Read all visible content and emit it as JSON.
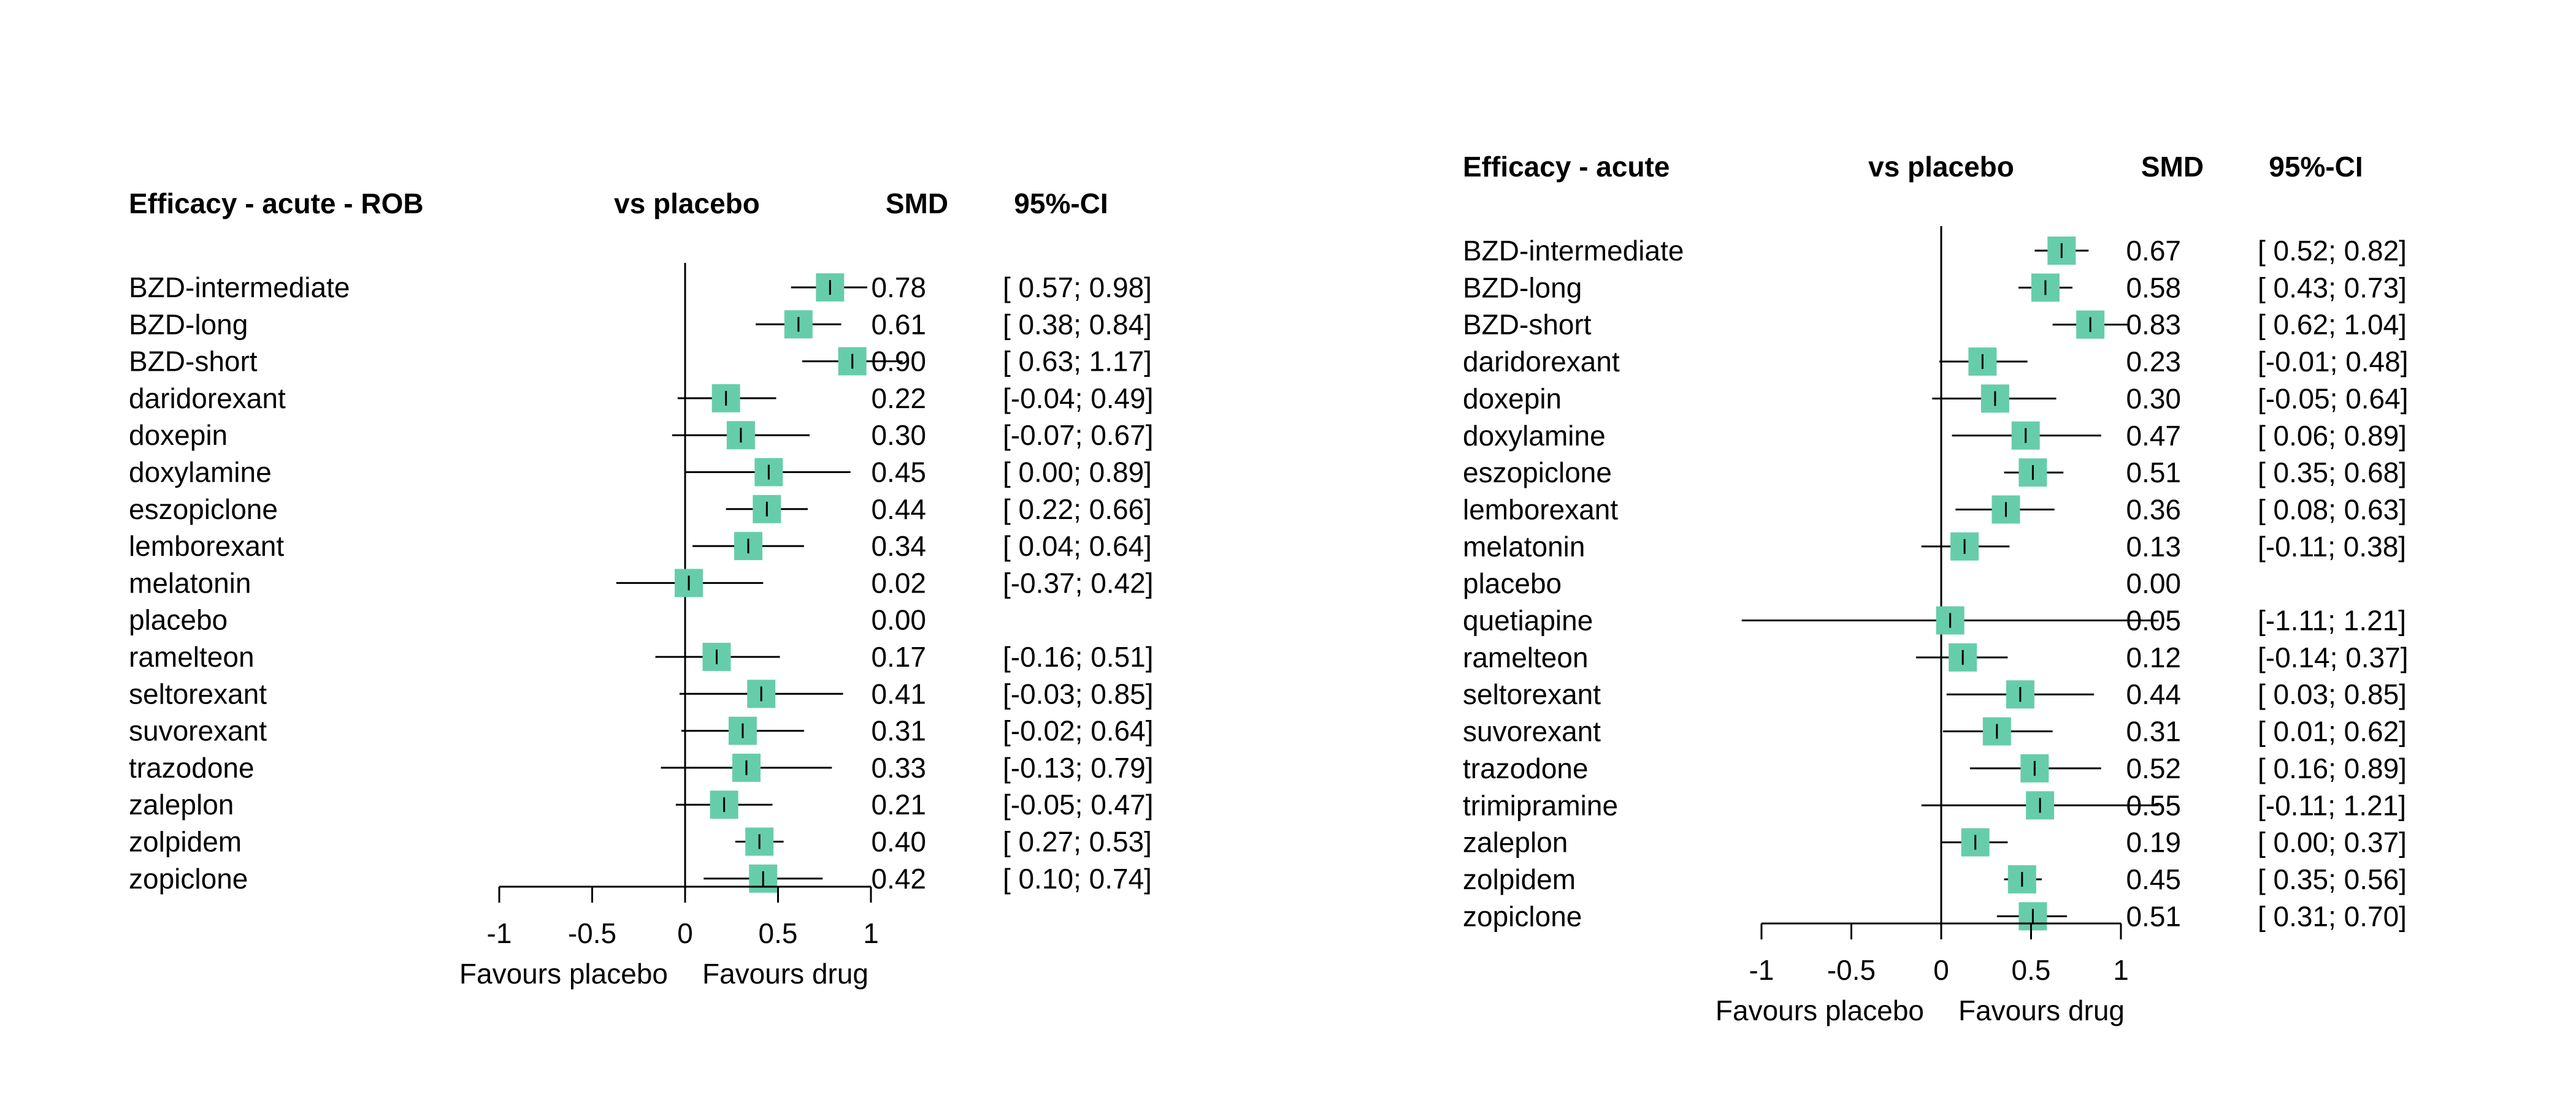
{
  "colors": {
    "box": "#66CDAA",
    "line": "#000000"
  },
  "chart_data": [
    {
      "type": "forest",
      "panel_title": "Efficacy - acute - ROB",
      "comparison_header": "vs placebo",
      "effect_header": "SMD",
      "ci_header": "95%-CI",
      "xlim": [
        -1,
        1
      ],
      "ticks": [
        "-1",
        "-0.5",
        "0",
        "0.5",
        "1"
      ],
      "tick_values": [
        -1,
        -0.5,
        0,
        0.5,
        1
      ],
      "favours_left": "Favours placebo",
      "favours_right": "Favours drug",
      "rows": [
        {
          "name": "BZD-intermediate",
          "est": 0.78,
          "lo": 0.57,
          "hi": 0.98,
          "smd": "0.78",
          "ci": "[ 0.57; 0.98]"
        },
        {
          "name": "BZD-long",
          "est": 0.61,
          "lo": 0.38,
          "hi": 0.84,
          "smd": "0.61",
          "ci": "[ 0.38; 0.84]"
        },
        {
          "name": "BZD-short",
          "est": 0.9,
          "lo": 0.63,
          "hi": 1.17,
          "smd": "0.90",
          "ci": "[ 0.63; 1.17]"
        },
        {
          "name": "daridorexant",
          "est": 0.22,
          "lo": -0.04,
          "hi": 0.49,
          "smd": "0.22",
          "ci": "[-0.04; 0.49]"
        },
        {
          "name": "doxepin",
          "est": 0.3,
          "lo": -0.07,
          "hi": 0.67,
          "smd": "0.30",
          "ci": "[-0.07; 0.67]"
        },
        {
          "name": "doxylamine",
          "est": 0.45,
          "lo": 0.0,
          "hi": 0.89,
          "smd": "0.45",
          "ci": "[ 0.00; 0.89]"
        },
        {
          "name": "eszopiclone",
          "est": 0.44,
          "lo": 0.22,
          "hi": 0.66,
          "smd": "0.44",
          "ci": "[ 0.22; 0.66]"
        },
        {
          "name": "lemborexant",
          "est": 0.34,
          "lo": 0.04,
          "hi": 0.64,
          "smd": "0.34",
          "ci": "[ 0.04; 0.64]"
        },
        {
          "name": "melatonin",
          "est": 0.02,
          "lo": -0.37,
          "hi": 0.42,
          "smd": "0.02",
          "ci": "[-0.37; 0.42]"
        },
        {
          "name": "placebo",
          "est": null,
          "lo": null,
          "hi": null,
          "smd": "0.00",
          "ci": ""
        },
        {
          "name": "ramelteon",
          "est": 0.17,
          "lo": -0.16,
          "hi": 0.51,
          "smd": "0.17",
          "ci": "[-0.16; 0.51]"
        },
        {
          "name": "seltorexant",
          "est": 0.41,
          "lo": -0.03,
          "hi": 0.85,
          "smd": "0.41",
          "ci": "[-0.03; 0.85]"
        },
        {
          "name": "suvorexant",
          "est": 0.31,
          "lo": -0.02,
          "hi": 0.64,
          "smd": "0.31",
          "ci": "[-0.02; 0.64]"
        },
        {
          "name": "trazodone",
          "est": 0.33,
          "lo": -0.13,
          "hi": 0.79,
          "smd": "0.33",
          "ci": "[-0.13; 0.79]"
        },
        {
          "name": "zaleplon",
          "est": 0.21,
          "lo": -0.05,
          "hi": 0.47,
          "smd": "0.21",
          "ci": "[-0.05; 0.47]"
        },
        {
          "name": "zolpidem",
          "est": 0.4,
          "lo": 0.27,
          "hi": 0.53,
          "smd": "0.40",
          "ci": "[ 0.27; 0.53]"
        },
        {
          "name": "zopiclone",
          "est": 0.42,
          "lo": 0.1,
          "hi": 0.74,
          "smd": "0.42",
          "ci": "[ 0.10; 0.74]"
        }
      ]
    },
    {
      "type": "forest",
      "panel_title": "Efficacy - acute",
      "comparison_header": "vs placebo",
      "effect_header": "SMD",
      "ci_header": "95%-CI",
      "xlim": [
        -1,
        1
      ],
      "ticks": [
        "-1",
        "-0.5",
        "0",
        "0.5",
        "1"
      ],
      "tick_values": [
        -1,
        -0.5,
        0,
        0.5,
        1
      ],
      "favours_left": "Favours placebo",
      "favours_right": "Favours drug",
      "rows": [
        {
          "name": "BZD-intermediate",
          "est": 0.67,
          "lo": 0.52,
          "hi": 0.82,
          "smd": "0.67",
          "ci": "[ 0.52; 0.82]"
        },
        {
          "name": "BZD-long",
          "est": 0.58,
          "lo": 0.43,
          "hi": 0.73,
          "smd": "0.58",
          "ci": "[ 0.43; 0.73]"
        },
        {
          "name": "BZD-short",
          "est": 0.83,
          "lo": 0.62,
          "hi": 1.04,
          "smd": "0.83",
          "ci": "[ 0.62; 1.04]"
        },
        {
          "name": "daridorexant",
          "est": 0.23,
          "lo": -0.01,
          "hi": 0.48,
          "smd": "0.23",
          "ci": "[-0.01; 0.48]"
        },
        {
          "name": "doxepin",
          "est": 0.3,
          "lo": -0.05,
          "hi": 0.64,
          "smd": "0.30",
          "ci": "[-0.05; 0.64]"
        },
        {
          "name": "doxylamine",
          "est": 0.47,
          "lo": 0.06,
          "hi": 0.89,
          "smd": "0.47",
          "ci": "[ 0.06; 0.89]"
        },
        {
          "name": "eszopiclone",
          "est": 0.51,
          "lo": 0.35,
          "hi": 0.68,
          "smd": "0.51",
          "ci": "[ 0.35; 0.68]"
        },
        {
          "name": "lemborexant",
          "est": 0.36,
          "lo": 0.08,
          "hi": 0.63,
          "smd": "0.36",
          "ci": "[ 0.08; 0.63]"
        },
        {
          "name": "melatonin",
          "est": 0.13,
          "lo": -0.11,
          "hi": 0.38,
          "smd": "0.13",
          "ci": "[-0.11; 0.38]"
        },
        {
          "name": "placebo",
          "est": null,
          "lo": null,
          "hi": null,
          "smd": "0.00",
          "ci": ""
        },
        {
          "name": "quetiapine",
          "est": 0.05,
          "lo": -1.11,
          "hi": 1.21,
          "smd": "0.05",
          "ci": "[-1.11; 1.21]"
        },
        {
          "name": "ramelteon",
          "est": 0.12,
          "lo": -0.14,
          "hi": 0.37,
          "smd": "0.12",
          "ci": "[-0.14; 0.37]"
        },
        {
          "name": "seltorexant",
          "est": 0.44,
          "lo": 0.03,
          "hi": 0.85,
          "smd": "0.44",
          "ci": "[ 0.03; 0.85]"
        },
        {
          "name": "suvorexant",
          "est": 0.31,
          "lo": 0.01,
          "hi": 0.62,
          "smd": "0.31",
          "ci": "[ 0.01; 0.62]"
        },
        {
          "name": "trazodone",
          "est": 0.52,
          "lo": 0.16,
          "hi": 0.89,
          "smd": "0.52",
          "ci": "[ 0.16; 0.89]"
        },
        {
          "name": "trimipramine",
          "est": 0.55,
          "lo": -0.11,
          "hi": 1.21,
          "smd": "0.55",
          "ci": "[-0.11; 1.21]"
        },
        {
          "name": "zaleplon",
          "est": 0.19,
          "lo": 0.0,
          "hi": 0.37,
          "smd": "0.19",
          "ci": "[ 0.00; 0.37]"
        },
        {
          "name": "zolpidem",
          "est": 0.45,
          "lo": 0.35,
          "hi": 0.56,
          "smd": "0.45",
          "ci": "[ 0.35; 0.56]"
        },
        {
          "name": "zopiclone",
          "est": 0.51,
          "lo": 0.31,
          "hi": 0.7,
          "smd": "0.51",
          "ci": "[ 0.31; 0.70]"
        }
      ]
    }
  ]
}
